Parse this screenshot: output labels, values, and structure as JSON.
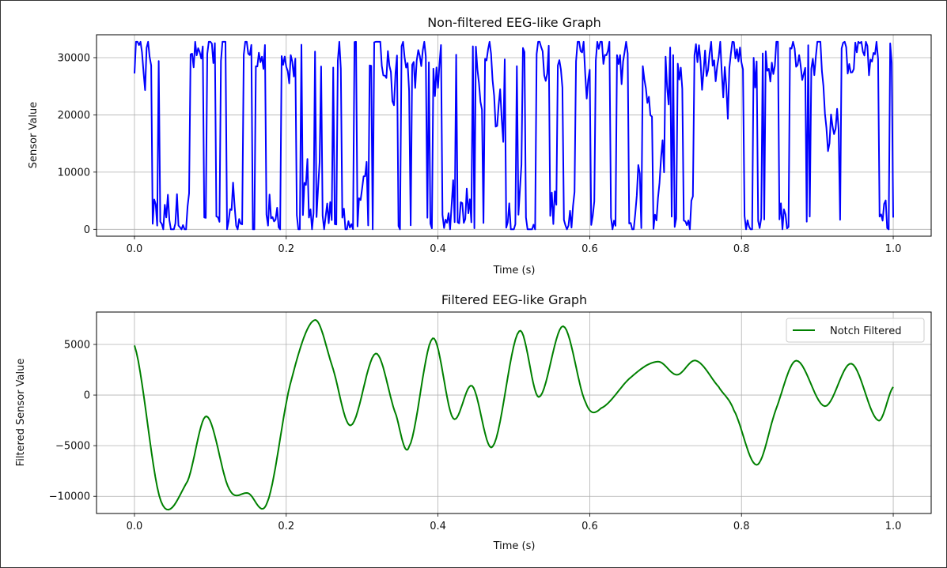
{
  "chart_data": [
    {
      "type": "line",
      "title": "Non-filtered EEG-like Graph",
      "xlabel": "Time (s)",
      "ylabel": "Sensor Value",
      "xlim": [
        -0.05,
        1.05
      ],
      "ylim": [
        -1200,
        34000
      ],
      "xticks": [
        0.0,
        0.2,
        0.4,
        0.6,
        0.8,
        1.0
      ],
      "xtick_labels": [
        "0.0",
        "0.2",
        "0.4",
        "0.6",
        "0.8",
        "1.0"
      ],
      "yticks": [
        0,
        10000,
        20000,
        30000
      ],
      "ytick_labels": [
        "0",
        "10000",
        "20000",
        "30000"
      ],
      "grid": true,
      "legend": null,
      "series": [
        {
          "color": "#0000ff",
          "signal": {
            "t_start": 0.0,
            "t_end": 1.0,
            "points": 500,
            "min": 0,
            "max": 32767,
            "description": "noisy 16-bit sensor values rapidly switching between near 0 and near 32767"
          }
        }
      ]
    },
    {
      "type": "line",
      "title": "Filtered EEG-like Graph",
      "xlabel": "Time (s)",
      "ylabel": "Filtered Sensor Value",
      "xlim": [
        -0.05,
        1.05
      ],
      "ylim": [
        -11700,
        8200
      ],
      "xticks": [
        0.0,
        0.2,
        0.4,
        0.6,
        0.8,
        1.0
      ],
      "xtick_labels": [
        "0.0",
        "0.2",
        "0.4",
        "0.6",
        "0.8",
        "1.0"
      ],
      "yticks": [
        -10000,
        -5000,
        0,
        5000
      ],
      "ytick_labels": [
        "−10000",
        "−5000",
        "0",
        "5000"
      ],
      "grid": true,
      "legend": "top-right",
      "series": [
        {
          "name": "Notch Filtered",
          "color": "#008000",
          "key_points": {
            "x": [
              0.0,
              0.035,
              0.07,
              0.095,
              0.125,
              0.15,
              0.175,
              0.205,
              0.237,
              0.26,
              0.285,
              0.318,
              0.345,
              0.362,
              0.393,
              0.42,
              0.445,
              0.472,
              0.507,
              0.533,
              0.565,
              0.595,
              0.615,
              0.655,
              0.69,
              0.715,
              0.74,
              0.77,
              0.79,
              0.82,
              0.845,
              0.872,
              0.91,
              0.945,
              0.98,
              1.0
            ],
            "y": [
              4900,
              -10500,
              -8500,
              -2100,
              -9300,
              -9700,
              -10600,
              1000,
              7400,
              3000,
              -3000,
              4100,
              -2000,
              -5100,
              5600,
              -2300,
              900,
              -5100,
              6300,
              -200,
              6800,
              -800,
              -1300,
              1800,
              3300,
              2000,
              3400,
              800,
              -1500,
              -6900,
              -1500,
              3400,
              -1100,
              3100,
              -2500,
              800
            ]
          }
        }
      ]
    }
  ]
}
